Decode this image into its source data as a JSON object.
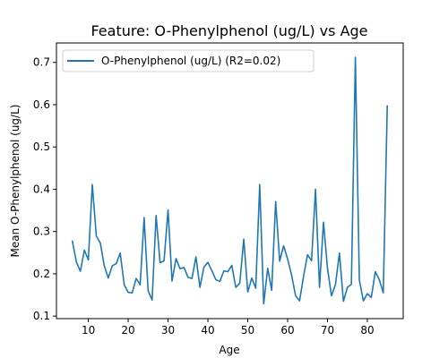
{
  "chart_data": {
    "type": "line",
    "title": "Feature: O-Phenylphenol (ug/L) vs Age",
    "xlabel": "Age",
    "ylabel": "Mean O-Phenylphenol (ug/L)",
    "xlim": [
      2,
      89
    ],
    "ylim": [
      0.094,
      0.746
    ],
    "xticks": [
      10,
      20,
      30,
      40,
      50,
      60,
      70,
      80
    ],
    "yticks": [
      0.1,
      0.2,
      0.3,
      0.4,
      0.5,
      0.6,
      0.7
    ],
    "grid": false,
    "legend_position": "top-left",
    "series": [
      {
        "name": "O-Phenylphenol (ug/L) (R2=0.02)",
        "color": "#1f77b4",
        "x": [
          6,
          7,
          8,
          9,
          10,
          11,
          12,
          13,
          14,
          15,
          16,
          17,
          18,
          19,
          20,
          21,
          22,
          23,
          24,
          25,
          26,
          27,
          28,
          29,
          30,
          31,
          32,
          33,
          34,
          35,
          36,
          37,
          38,
          39,
          40,
          41,
          42,
          43,
          44,
          45,
          46,
          47,
          48,
          49,
          50,
          51,
          52,
          53,
          54,
          55,
          56,
          57,
          58,
          59,
          60,
          61,
          62,
          63,
          64,
          65,
          66,
          67,
          68,
          69,
          70,
          71,
          72,
          73,
          74,
          75,
          76,
          77,
          78,
          79,
          80,
          81,
          82,
          83,
          84,
          85
        ],
        "y": [
          0.277,
          0.228,
          0.206,
          0.256,
          0.233,
          0.411,
          0.289,
          0.273,
          0.219,
          0.19,
          0.219,
          0.224,
          0.249,
          0.174,
          0.156,
          0.155,
          0.189,
          0.174,
          0.333,
          0.16,
          0.138,
          0.338,
          0.226,
          0.231,
          0.351,
          0.183,
          0.236,
          0.212,
          0.215,
          0.192,
          0.189,
          0.24,
          0.168,
          0.216,
          0.227,
          0.207,
          0.186,
          0.182,
          0.207,
          0.205,
          0.22,
          0.168,
          0.178,
          0.282,
          0.157,
          0.19,
          0.166,
          0.411,
          0.129,
          0.213,
          0.161,
          0.371,
          0.23,
          0.266,
          0.235,
          0.197,
          0.148,
          0.136,
          0.194,
          0.245,
          0.231,
          0.4,
          0.168,
          0.322,
          0.213,
          0.148,
          0.174,
          0.249,
          0.135,
          0.168,
          0.175,
          0.712,
          0.185,
          0.136,
          0.153,
          0.144,
          0.205,
          0.186,
          0.155,
          0.597
        ]
      }
    ]
  }
}
